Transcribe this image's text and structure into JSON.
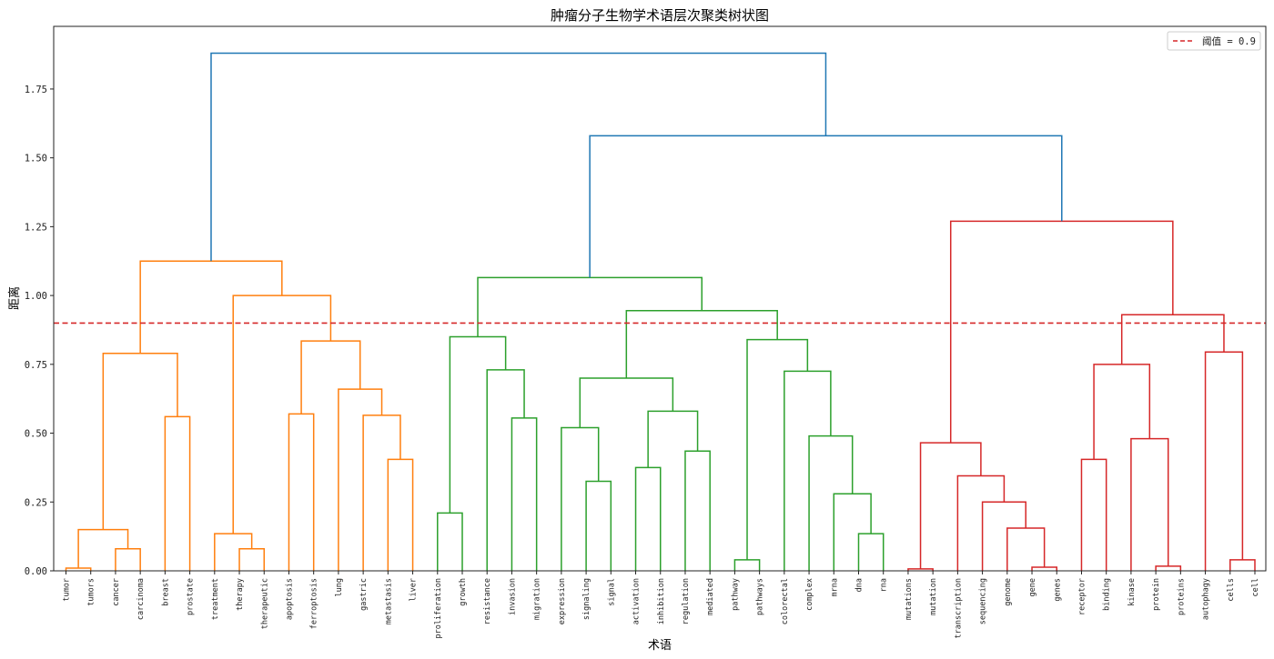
{
  "chart_data": {
    "type": "dendrogram",
    "title": "肿瘤分子生物学术语层次聚类树状图",
    "xlabel": "术语",
    "ylabel": "距离",
    "ylim": [
      0,
      1.97
    ],
    "yticks": [
      "0.00",
      "0.25",
      "0.50",
      "0.75",
      "1.00",
      "1.25",
      "1.50",
      "1.75"
    ],
    "grid": false,
    "legend": {
      "position": "upper right",
      "entries": [
        {
          "label": "阈值 = 0.9",
          "style": "dashed",
          "color": "#d62728"
        }
      ]
    },
    "threshold": 0.9,
    "colors": {
      "above_threshold": "#1f77b4",
      "cluster_1": "#ff7f0e",
      "cluster_2": "#2ca02c",
      "cluster_3": "#d62728"
    },
    "leaves": [
      "tumor",
      "tumors",
      "cancer",
      "carcinoma",
      "breast",
      "prostate",
      "treatment",
      "therapy",
      "therapeutic",
      "apoptosis",
      "ferroptosis",
      "lung",
      "gastric",
      "metastasis",
      "liver",
      "proliferation",
      "growth",
      "resistance",
      "invasion",
      "migration",
      "expression",
      "signaling",
      "signal",
      "activation",
      "inhibition",
      "regulation",
      "mediated",
      "pathway",
      "pathways",
      "colorectal",
      "complex",
      "mrna",
      "dna",
      "rna",
      "mutations",
      "mutation",
      "transcription",
      "sequencing",
      "genome",
      "gene",
      "genes",
      "receptor",
      "binding",
      "kinase",
      "protein",
      "proteins",
      "autophagy",
      "cells",
      "cell"
    ],
    "merges": [
      {
        "left": "L0",
        "right": "L1",
        "height": 0.01,
        "id": "a1",
        "color": "cluster_1"
      },
      {
        "left": "L2",
        "right": "L3",
        "height": 0.08,
        "id": "a2",
        "color": "cluster_1"
      },
      {
        "left": "a1",
        "right": "a2",
        "height": 0.15,
        "id": "a3",
        "color": "cluster_1"
      },
      {
        "left": "L4",
        "right": "L5",
        "height": 0.56,
        "id": "a4",
        "color": "cluster_1"
      },
      {
        "left": "a3",
        "right": "a4",
        "height": 0.79,
        "id": "a5",
        "color": "cluster_1"
      },
      {
        "left": "L7",
        "right": "L8",
        "height": 0.08,
        "id": "a6",
        "color": "cluster_1"
      },
      {
        "left": "L6",
        "right": "a6",
        "height": 0.135,
        "id": "a7",
        "color": "cluster_1"
      },
      {
        "left": "L9",
        "right": "L10",
        "height": 0.57,
        "id": "a8",
        "color": "cluster_1"
      },
      {
        "left": "L13",
        "right": "L14",
        "height": 0.405,
        "id": "a9",
        "color": "cluster_1"
      },
      {
        "left": "L12",
        "right": "a9",
        "height": 0.565,
        "id": "a10",
        "color": "cluster_1"
      },
      {
        "left": "L11",
        "right": "a10",
        "height": 0.66,
        "id": "a11",
        "color": "cluster_1"
      },
      {
        "left": "a8",
        "right": "a11",
        "height": 0.835,
        "id": "a12",
        "color": "cluster_1"
      },
      {
        "left": "a7",
        "right": "a12",
        "height": 1.0,
        "id": "a13",
        "color": "cluster_1"
      },
      {
        "left": "a5",
        "right": "a13",
        "height": 1.125,
        "id": "a14",
        "color": "cluster_1"
      },
      {
        "left": "L15",
        "right": "L16",
        "height": 0.21,
        "id": "b1",
        "color": "cluster_2"
      },
      {
        "left": "L18",
        "right": "L19",
        "height": 0.555,
        "id": "b2",
        "color": "cluster_2"
      },
      {
        "left": "L17",
        "right": "b2",
        "height": 0.73,
        "id": "b3",
        "color": "cluster_2"
      },
      {
        "left": "b1",
        "right": "b3",
        "height": 0.85,
        "id": "b4",
        "color": "cluster_2"
      },
      {
        "left": "L21",
        "right": "L22",
        "height": 0.325,
        "id": "b5",
        "color": "cluster_2"
      },
      {
        "left": "L20",
        "right": "b5",
        "height": 0.52,
        "id": "b6",
        "color": "cluster_2"
      },
      {
        "left": "L23",
        "right": "L24",
        "height": 0.375,
        "id": "b7",
        "color": "cluster_2"
      },
      {
        "left": "L25",
        "right": "L26",
        "height": 0.435,
        "id": "b8",
        "color": "cluster_2"
      },
      {
        "left": "b7",
        "right": "b8",
        "height": 0.58,
        "id": "b9",
        "color": "cluster_2"
      },
      {
        "left": "b6",
        "right": "b9",
        "height": 0.7,
        "id": "b10",
        "color": "cluster_2"
      },
      {
        "left": "L27",
        "right": "L28",
        "height": 0.04,
        "id": "b11",
        "color": "cluster_2"
      },
      {
        "left": "L32",
        "right": "L33",
        "height": 0.135,
        "id": "b12",
        "color": "cluster_2"
      },
      {
        "left": "L31",
        "right": "b12",
        "height": 0.28,
        "id": "b13",
        "color": "cluster_2"
      },
      {
        "left": "L30",
        "right": "b13",
        "height": 0.49,
        "id": "b14",
        "color": "cluster_2"
      },
      {
        "left": "L29",
        "right": "b14",
        "height": 0.725,
        "id": "b15",
        "color": "cluster_2"
      },
      {
        "left": "b11",
        "right": "b15",
        "height": 0.84,
        "id": "b16",
        "color": "cluster_2"
      },
      {
        "left": "b10",
        "right": "b16",
        "height": 0.945,
        "id": "b17",
        "color": "cluster_2"
      },
      {
        "left": "b4",
        "right": "b17",
        "height": 1.065,
        "id": "b18",
        "color": "cluster_2"
      },
      {
        "left": "L34",
        "right": "L35",
        "height": 0.007,
        "id": "c1",
        "color": "cluster_3"
      },
      {
        "left": "L39",
        "right": "L40",
        "height": 0.013,
        "id": "c2",
        "color": "cluster_3"
      },
      {
        "left": "L38",
        "right": "c2",
        "height": 0.155,
        "id": "c3",
        "color": "cluster_3"
      },
      {
        "left": "L37",
        "right": "c3",
        "height": 0.25,
        "id": "c4",
        "color": "cluster_3"
      },
      {
        "left": "L36",
        "right": "c4",
        "height": 0.345,
        "id": "c5",
        "color": "cluster_3"
      },
      {
        "left": "c1",
        "right": "c5",
        "height": 0.465,
        "id": "c6",
        "color": "cluster_3"
      },
      {
        "left": "L41",
        "right": "L42",
        "height": 0.405,
        "id": "c7",
        "color": "cluster_3"
      },
      {
        "left": "L44",
        "right": "L45",
        "height": 0.017,
        "id": "c8",
        "color": "cluster_3"
      },
      {
        "left": "L43",
        "right": "c8",
        "height": 0.48,
        "id": "c9",
        "color": "cluster_3"
      },
      {
        "left": "c7",
        "right": "c9",
        "height": 0.75,
        "id": "c10",
        "color": "cluster_3"
      },
      {
        "left": "L47",
        "right": "L48",
        "height": 0.04,
        "id": "c11",
        "color": "cluster_3"
      },
      {
        "left": "L46",
        "right": "c11",
        "height": 0.795,
        "id": "c12",
        "color": "cluster_3"
      },
      {
        "left": "c10",
        "right": "c12",
        "height": 0.93,
        "id": "c13",
        "color": "cluster_3"
      },
      {
        "left": "c6",
        "right": "c13",
        "height": 1.27,
        "id": "c14",
        "color": "cluster_3"
      },
      {
        "left": "b18",
        "right": "c14",
        "height": 1.58,
        "id": "r1",
        "color": "above_threshold"
      },
      {
        "left": "a14",
        "right": "r1",
        "height": 1.88,
        "id": "r2",
        "color": "above_threshold"
      }
    ]
  }
}
